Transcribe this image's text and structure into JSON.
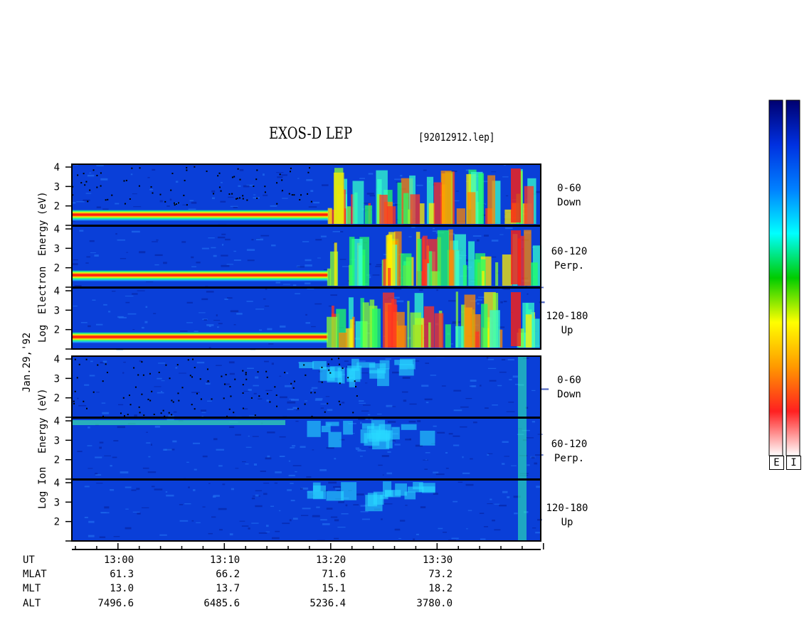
{
  "header": {
    "title": "EXOS-D LEP",
    "file": "[92012912.lep]"
  },
  "date_label": "Jan.29,'92",
  "electron_axis_label": {
    "line1": "Log",
    "line2": "Electron",
    "line3": "Energy",
    "line4": "(eV)"
  },
  "ion_axis_label": {
    "line1": "Log",
    "line2": "Ion",
    "line3": "Energy",
    "line4": "(eV)"
  },
  "panel_labels": [
    {
      "range": "0-60",
      "direction": "Down"
    },
    {
      "range": "60-120",
      "direction": "Perp."
    },
    {
      "range": "120-180",
      "direction": "Up"
    },
    {
      "range": "0-60",
      "direction": "Down"
    },
    {
      "range": "60-120",
      "direction": "Perp."
    },
    {
      "range": "120-180",
      "direction": "Up"
    }
  ],
  "ephemeris": {
    "row_labels": [
      "UT",
      "MLAT",
      "MLT",
      "ALT"
    ],
    "columns": [
      {
        "ut": "13:00",
        "mlat": "61.3",
        "mlt": "13.0",
        "alt": "7496.6"
      },
      {
        "ut": "13:10",
        "mlat": "66.2",
        "mlt": "13.7",
        "alt": "6485.6"
      },
      {
        "ut": "13:20",
        "mlat": "71.6",
        "mlt": "15.1",
        "alt": "5236.4"
      },
      {
        "ut": "13:30",
        "mlat": "73.2",
        "mlt": "18.2",
        "alt": "3780.0"
      }
    ]
  },
  "colorbars": [
    {
      "label": "E"
    },
    {
      "label": "I"
    }
  ],
  "colors": {
    "background_blue": "#0a3fd8",
    "band_red": "#ff1a10",
    "scale": [
      "#ffffff",
      "#ff2020",
      "#ff9900",
      "#ffff00",
      "#00cc00",
      "#00ffff",
      "#0080ff",
      "#0030e0",
      "#000070"
    ]
  },
  "chart_data": {
    "type": "heatmap",
    "title": "EXOS-D LEP",
    "x_axis": {
      "label": "UT",
      "ticks": [
        "13:00",
        "13:10",
        "13:20",
        "13:30"
      ]
    },
    "y_axis": {
      "label": "Log Energy (eV)",
      "ticks": [
        2,
        3,
        4
      ],
      "range": [
        1,
        4
      ]
    },
    "panels": [
      {
        "species": "Electron",
        "pitch_angle": "0-60",
        "direction": "Down"
      },
      {
        "species": "Electron",
        "pitch_angle": "60-120",
        "direction": "Perp."
      },
      {
        "species": "Electron",
        "pitch_angle": "120-180",
        "direction": "Up"
      },
      {
        "species": "Ion",
        "pitch_angle": "0-60",
        "direction": "Down"
      },
      {
        "species": "Ion",
        "pitch_angle": "60-120",
        "direction": "Perp."
      },
      {
        "species": "Ion",
        "pitch_angle": "120-180",
        "direction": "Up"
      }
    ]
  }
}
